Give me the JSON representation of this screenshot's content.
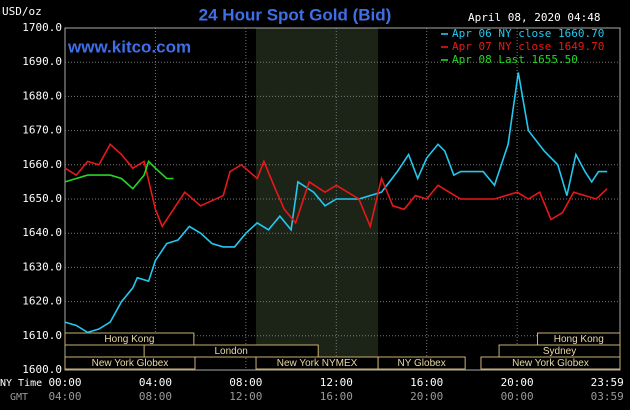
{
  "chart_data": {
    "type": "line",
    "title": "24 Hour Spot Gold (Bid)",
    "y_label": "USD/oz",
    "annotation": "www.kitco.com",
    "timestamp": "April 08, 2020 04:48",
    "x_label": "NY Time",
    "x2_label": "GMT",
    "xlim": [
      0,
      24.55
    ],
    "xticks": [
      {
        "value": 0,
        "label": "00:00"
      },
      {
        "value": 4,
        "label": "04:00"
      },
      {
        "value": 8,
        "label": "08:00"
      },
      {
        "value": 12,
        "label": "12:00"
      },
      {
        "value": 16,
        "label": "16:00"
      },
      {
        "value": 20,
        "label": "20:00"
      },
      {
        "value": 23.983,
        "label": "23:59"
      }
    ],
    "x2tick_labels": [
      "04:00",
      "08:00",
      "12:00",
      "16:00",
      "20:00",
      "00:00",
      "03:59"
    ],
    "ylim": [
      1600,
      1700
    ],
    "yticks": [
      {
        "value": 1600,
        "label": "1600.0"
      },
      {
        "value": 1610,
        "label": "1610.0"
      },
      {
        "value": 1620,
        "label": "1620.0"
      },
      {
        "value": 1630,
        "label": "1630.0"
      },
      {
        "value": 1640,
        "label": "1640.0"
      },
      {
        "value": 1650,
        "label": "1650.0"
      },
      {
        "value": 1660,
        "label": "1660.0"
      },
      {
        "value": 1670,
        "label": "1670.0"
      },
      {
        "value": 1680,
        "label": "1680.0"
      },
      {
        "value": 1690,
        "label": "1690.0"
      },
      {
        "value": 1700,
        "label": "1700.0"
      }
    ],
    "grid": true,
    "sessions": [
      {
        "name": "Hong Kong",
        "start": 0,
        "end": 5.7
      },
      {
        "name": "Hong Kong",
        "start": 20.9,
        "end": 24.55
      },
      {
        "name": "London",
        "start": 3.5,
        "end": 11.2
      },
      {
        "name": "Sydney",
        "start": 19.2,
        "end": 24.55
      },
      {
        "name": "New York Globex",
        "start": 0,
        "end": 5.75
      },
      {
        "name": "New York NYMEX",
        "start": 8.45,
        "end": 13.85
      },
      {
        "name": "NY Globex",
        "start": 13.85,
        "end": 17.7
      },
      {
        "name": "New York Globex",
        "start": 18.4,
        "end": 24.55
      }
    ],
    "series": [
      {
        "name": "Apr 06 NY close 1660.70",
        "color": "#22c8f0",
        "x": [
          0,
          0.5,
          1,
          1.5,
          2,
          2.5,
          3,
          3.2,
          3.7,
          4,
          4.5,
          5,
          5.5,
          6,
          6.5,
          7,
          7.5,
          8,
          8.5,
          9,
          9.5,
          10,
          10.3,
          11,
          11.5,
          12,
          13,
          14,
          14.7,
          15.2,
          15.6,
          16,
          16.5,
          16.8,
          17.2,
          17.5,
          18.5,
          19,
          19.6,
          20.05,
          20.5,
          21.2,
          21.8,
          22.2,
          22.6,
          23,
          23.3,
          23.6,
          23.98
        ],
        "values": [
          1614,
          1613,
          1611,
          1612,
          1614,
          1620,
          1624,
          1627,
          1626,
          1632,
          1637,
          1638,
          1642,
          1640,
          1637,
          1636,
          1636,
          1640,
          1643,
          1641,
          1645,
          1641,
          1655,
          1652,
          1648,
          1650,
          1650,
          1652,
          1658,
          1663,
          1656,
          1662,
          1666,
          1664,
          1657,
          1658,
          1658,
          1654,
          1666,
          1687,
          1670,
          1664,
          1660,
          1651,
          1663,
          1658,
          1655,
          1658,
          1658
        ]
      },
      {
        "name": "Apr 07 NY close 1649.70",
        "color": "#e81818",
        "x": [
          0,
          0.5,
          1,
          1.5,
          2,
          2.5,
          3,
          3.5,
          4,
          4.3,
          5,
          5.3,
          6,
          7,
          7.3,
          7.8,
          8.5,
          8.8,
          9.3,
          9.7,
          10.2,
          10.8,
          11.5,
          12,
          13,
          13.5,
          14,
          14.5,
          15,
          15.5,
          16,
          16.5,
          17,
          17.5,
          19,
          20,
          20.5,
          21,
          21.5,
          22,
          22.5,
          23,
          23.5,
          23.98
        ],
        "values": [
          1659,
          1657,
          1661,
          1660,
          1666,
          1663,
          1659,
          1661,
          1647,
          1642,
          1649,
          1652,
          1648,
          1651,
          1658,
          1660,
          1656,
          1661,
          1653,
          1647,
          1643,
          1655,
          1652,
          1654,
          1650,
          1642,
          1656,
          1648,
          1647,
          1651,
          1650,
          1654,
          1652,
          1650,
          1650,
          1652,
          1650,
          1652,
          1644,
          1646,
          1652,
          1651,
          1650,
          1653
        ]
      },
      {
        "name": "Apr 08 Last 1655.50",
        "color": "#22d822",
        "x": [
          0,
          0.5,
          1,
          1.5,
          2,
          2.5,
          3,
          3.5,
          3.7,
          4,
          4.5,
          4.8
        ],
        "values": [
          1655,
          1656,
          1657,
          1657,
          1657,
          1656,
          1653,
          1657,
          1661,
          1659,
          1656,
          1656
        ]
      }
    ]
  }
}
